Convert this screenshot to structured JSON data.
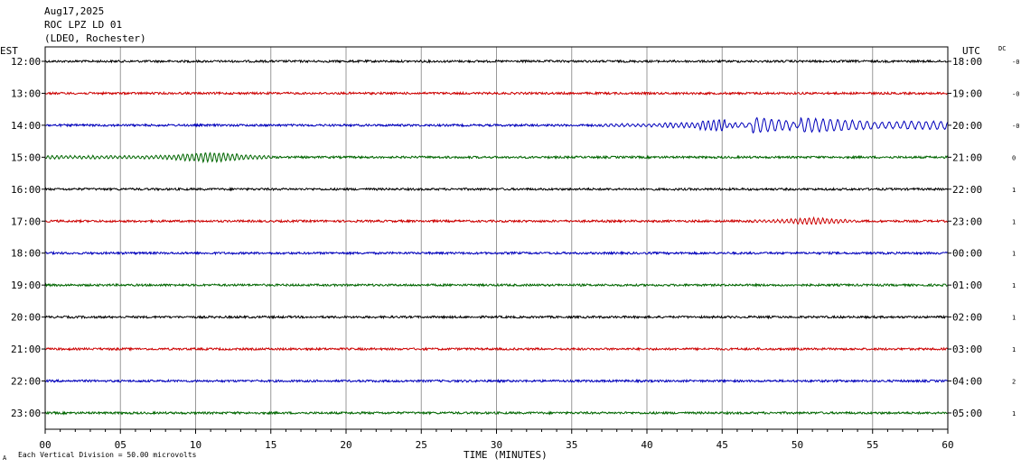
{
  "header": {
    "date": "Aug17,2025",
    "station": "ROC LPZ LD 01",
    "location": "(LDEO, Rochester)"
  },
  "chart_data": {
    "type": "line",
    "title": "",
    "xlabel": "TIME (MINUTES)",
    "x_ticks": [
      "00",
      "05",
      "10",
      "15",
      "20",
      "25",
      "30",
      "35",
      "40",
      "45",
      "50",
      "55",
      "60"
    ],
    "xlim": [
      0,
      60
    ],
    "grid": "vertical lines every 5 minutes",
    "left_axis_title": "EST",
    "right_axis_title": "UTC",
    "dc_title": "DC",
    "trace_colors": [
      "#000000",
      "#cc0000",
      "#0000bb",
      "#006600"
    ],
    "rows": [
      {
        "est": "12:00",
        "utc": "18:00",
        "dc": "-0"
      },
      {
        "est": "13:00",
        "utc": "19:00",
        "dc": "-0"
      },
      {
        "est": "14:00",
        "utc": "20:00",
        "dc": "-0"
      },
      {
        "est": "15:00",
        "utc": "21:00",
        "dc": "0"
      },
      {
        "est": "16:00",
        "utc": "22:00",
        "dc": "1"
      },
      {
        "est": "17:00",
        "utc": "23:00",
        "dc": "1"
      },
      {
        "est": "18:00",
        "utc": "00:00",
        "dc": "1"
      },
      {
        "est": "19:00",
        "utc": "01:00",
        "dc": "1"
      },
      {
        "est": "20:00",
        "utc": "02:00",
        "dc": "1"
      },
      {
        "est": "21:00",
        "utc": "03:00",
        "dc": "1"
      },
      {
        "est": "22:00",
        "utc": "04:00",
        "dc": "2"
      },
      {
        "est": "23:00",
        "utc": "05:00",
        "dc": "1"
      }
    ],
    "events": [
      {
        "row": 2,
        "start_min": 30,
        "end_min": 60,
        "peak_min": 47.5,
        "description_amplitude": "large"
      },
      {
        "row": 3,
        "start_min": 0,
        "end_min": 15,
        "peak_min": 11,
        "description_amplitude": "medium"
      },
      {
        "row": 5,
        "start_min": 47,
        "end_min": 54,
        "peak_min": 51,
        "description_amplitude": "small"
      }
    ],
    "footer_note": "Each Vertical Division =   50.00 microvolts",
    "footer_symbol": "A"
  }
}
